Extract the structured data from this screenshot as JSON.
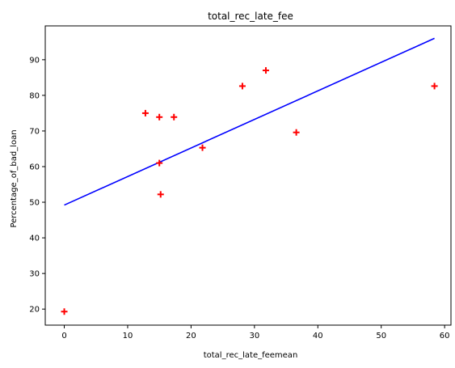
{
  "chart_data": {
    "type": "scatter",
    "title": "total_rec_late_fee",
    "xlabel": "total_rec_late_feemean",
    "ylabel": "Percentage_of_bad_loan",
    "xlim": [
      -3,
      61
    ],
    "ylim": [
      15.5,
      99.5
    ],
    "xticks": [
      0,
      10,
      20,
      30,
      40,
      50,
      60
    ],
    "yticks": [
      20,
      30,
      40,
      50,
      60,
      70,
      80,
      90
    ],
    "grid": false,
    "points": {
      "marker": "+",
      "color": "#ff0000",
      "x": [
        0.0,
        12.8,
        15.0,
        15.0,
        15.2,
        17.3,
        21.8,
        28.1,
        31.8,
        36.6,
        58.4
      ],
      "y": [
        19.3,
        75.0,
        73.9,
        61.0,
        52.2,
        73.9,
        65.3,
        82.6,
        87.0,
        69.6,
        82.6
      ]
    },
    "fit_line": {
      "color": "#0000ff",
      "x": [
        0.0,
        58.4
      ],
      "y": [
        49.2,
        96.0
      ]
    }
  }
}
